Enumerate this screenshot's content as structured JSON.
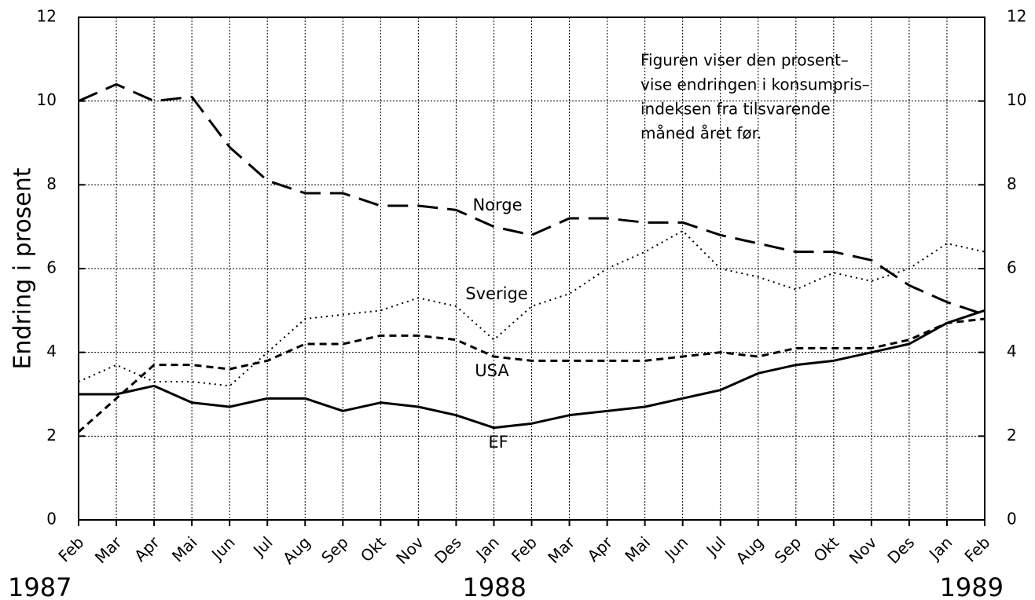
{
  "chart_data": {
    "type": "line",
    "y_label": "Endring i prosent",
    "annotation": [
      "Figuren viser den prosent–",
      "vise endringen i konsumpris–",
      "indeksen fra tilsvarende",
      "måned året før."
    ],
    "categories": [
      "Feb",
      "Mar",
      "Apr",
      "Mai",
      "Jun",
      "Jul",
      "Aug",
      "Sep",
      "Okt",
      "Nov",
      "Des",
      "Jan",
      "Feb",
      "Mar",
      "Apr",
      "Mai",
      "Jun",
      "Jul",
      "Aug",
      "Sep",
      "Okt",
      "Nov",
      "Des",
      "Jan",
      "Feb"
    ],
    "year_labels": [
      "1987",
      "1988",
      "1989"
    ],
    "series": [
      {
        "name": "Norge",
        "color": "#000000",
        "style": "dashed",
        "values": [
          10.0,
          10.4,
          10.0,
          10.1,
          8.9,
          8.1,
          7.8,
          7.8,
          7.5,
          7.5,
          7.4,
          7.0,
          6.8,
          7.2,
          7.2,
          7.1,
          7.1,
          6.8,
          6.6,
          6.4,
          6.4,
          6.2,
          5.6,
          5.2,
          4.9
        ]
      },
      {
        "name": "Sverige",
        "color": "#000000",
        "style": "dotted",
        "values": [
          3.3,
          3.7,
          3.3,
          3.3,
          3.2,
          4.0,
          4.8,
          4.9,
          5.0,
          5.3,
          5.1,
          4.3,
          5.1,
          5.4,
          6.0,
          6.4,
          6.9,
          6.0,
          5.8,
          5.5,
          5.9,
          5.7,
          6.0,
          6.6,
          6.4
        ]
      },
      {
        "name": "USA",
        "color": "#000000",
        "style": "short-dashed",
        "values": [
          2.1,
          2.9,
          3.7,
          3.7,
          3.6,
          3.8,
          4.2,
          4.2,
          4.4,
          4.4,
          4.3,
          3.9,
          3.8,
          3.8,
          3.8,
          3.8,
          3.9,
          4.0,
          3.9,
          4.1,
          4.1,
          4.1,
          4.3,
          4.7,
          4.8
        ]
      },
      {
        "name": "EF",
        "color": "#000000",
        "style": "solid",
        "values": [
          3.0,
          3.0,
          3.2,
          2.8,
          2.7,
          2.9,
          2.9,
          2.6,
          2.8,
          2.7,
          2.5,
          2.2,
          2.3,
          2.5,
          2.6,
          2.7,
          2.9,
          3.1,
          3.5,
          3.7,
          3.8,
          4.0,
          4.2,
          4.7,
          5.0
        ]
      }
    ],
    "ylim": [
      0,
      12
    ],
    "yticks": [
      0,
      2,
      4,
      6,
      8,
      10,
      12
    ],
    "y2lim": [
      0,
      12
    ],
    "y2ticks": [
      0,
      2,
      4,
      6,
      8,
      10,
      12
    ],
    "grid": true
  }
}
